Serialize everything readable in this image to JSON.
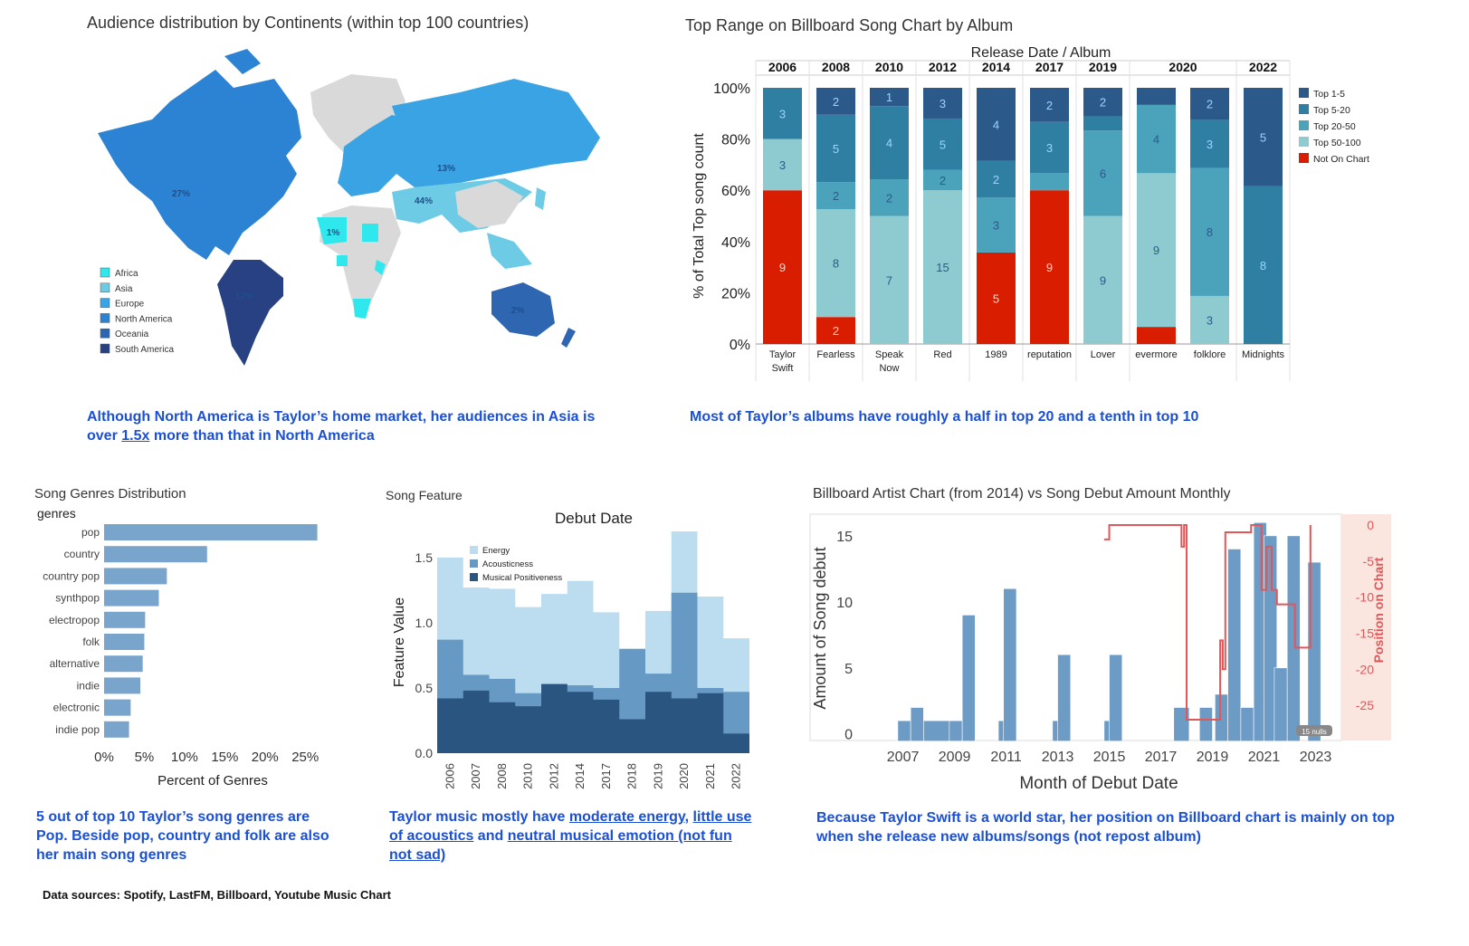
{
  "colors": {
    "africa": "#2ee8ee",
    "asia": "#6dcbe5",
    "europe": "#39a3e4",
    "north_america": "#2c83d3",
    "oceania": "#2f66b2",
    "south_america": "#274183",
    "top1_5": "#2b5a8a",
    "top5_20": "#2f7fa3",
    "top20_50": "#4aa2bb",
    "top50_100": "#8ecbd0",
    "not_on_chart": "#d81d00",
    "genre_bar": "#79a5cd",
    "energy": "#bcdcf0",
    "acousticness": "#6699c4",
    "positiveness": "#2a5580",
    "debut_bar": "#6c9bc6",
    "position_line": "#e15759",
    "position_bg": "#fbe6df",
    "caption": "#1a4fd6"
  },
  "map": {
    "title": "Audience distribution by Continents (within top 100 countries)",
    "labels": [
      "27%",
      "13%",
      "44%",
      "1%",
      "12%",
      "2%"
    ],
    "legend": [
      {
        "name": "Africa",
        "color": "#2ee8ee"
      },
      {
        "name": "Asia",
        "color": "#6dcbe5"
      },
      {
        "name": "Europe",
        "color": "#39a3e4"
      },
      {
        "name": "North America",
        "color": "#2c83d3"
      },
      {
        "name": "Oceania",
        "color": "#2f66b2"
      },
      {
        "name": "South America",
        "color": "#274183"
      }
    ],
    "caption_a": "Although North America is Taylor’s home market, her audiences in Asia is over ",
    "caption_u": "1.5x",
    "caption_b": " more than that in North America"
  },
  "chart_data": [
    {
      "type": "bar",
      "title": "Top Range on Billboard Song Chart by Album",
      "header": "Release Date  /  Album",
      "ylabel": "% of Total Top song count",
      "ylim": [
        0,
        100
      ],
      "yticks": [
        "0%",
        "20%",
        "40%",
        "60%",
        "80%",
        "100%"
      ],
      "years": [
        "2006",
        "2008",
        "2010",
        "2012",
        "2014",
        "2017",
        "2019",
        "2020",
        "2022"
      ],
      "categories": [
        "Taylor Swift",
        "Fearless",
        "Speak Now",
        "Red",
        "1989",
        "reputation",
        "Lover",
        "evermore",
        "folklore",
        "Midnights"
      ],
      "category_lines": [
        [
          "Taylor",
          "Swift"
        ],
        [
          "Fearless"
        ],
        [
          "Speak",
          "Now"
        ],
        [
          "Red"
        ],
        [
          "1989"
        ],
        [
          "reputation"
        ],
        [
          "Lover"
        ],
        [
          "evermore"
        ],
        [
          "folklore"
        ],
        [
          "Midnights"
        ]
      ],
      "series": [
        {
          "name": "Not On Chart",
          "values": [
            9,
            2,
            0,
            0,
            5,
            9,
            0,
            1,
            0,
            0
          ]
        },
        {
          "name": "Top 50-100",
          "values": [
            3,
            8,
            7,
            15,
            0,
            0,
            9,
            9,
            3,
            0
          ]
        },
        {
          "name": "Top 20-50",
          "values": [
            0,
            2,
            2,
            2,
            3,
            1,
            6,
            4,
            8,
            0
          ]
        },
        {
          "name": "Top 5-20",
          "values": [
            3,
            5,
            4,
            5,
            2,
            3,
            1,
            0,
            3,
            8
          ]
        },
        {
          "name": "Top 1-5",
          "values": [
            0,
            2,
            1,
            3,
            4,
            2,
            2,
            1,
            2,
            5
          ]
        }
      ],
      "data_labels": [
        [
          "9",
          "3",
          "",
          "3",
          ""
        ],
        [
          "2",
          "8",
          "2",
          "5",
          "2"
        ],
        [
          "",
          "7",
          "2",
          "4",
          "1"
        ],
        [
          "",
          "15",
          "2",
          "5",
          "3"
        ],
        [
          "5",
          "",
          "3",
          "2",
          "4"
        ],
        [
          "9",
          "",
          "",
          "3",
          "2"
        ],
        [
          "",
          "9",
          "6",
          "",
          "2"
        ],
        [
          "",
          "9",
          "4",
          "",
          ""
        ],
        [
          "",
          "3",
          "8",
          "3",
          "2"
        ],
        [
          "",
          "",
          "",
          "8",
          "5"
        ]
      ],
      "legend": [
        "Top 1-5",
        "Top 5-20",
        "Top 20-50",
        "Top 50-100",
        "Not On Chart"
      ],
      "caption": "Most of Taylor’s albums have roughly a half in top 20 and a tenth in top 10"
    },
    {
      "type": "bar",
      "title": "Song Genres Distribution",
      "ylabel": "genres",
      "xlabel": "Percent of Genres",
      "categories": [
        "pop",
        "country",
        "country pop",
        "synthpop",
        "electropop",
        "folk",
        "alternative",
        "indie",
        "electronic",
        "indie pop"
      ],
      "values": [
        26.5,
        12.8,
        7.8,
        6.8,
        5.1,
        5.0,
        4.8,
        4.5,
        3.3,
        3.1
      ],
      "xlim": [
        0,
        27
      ],
      "xticks": [
        "0%",
        "5%",
        "10%",
        "15%",
        "20%",
        "25%"
      ],
      "caption": "5 out of top 10 Taylor’s song genres are Pop. Beside pop, country and folk are also her main song genres"
    },
    {
      "type": "area",
      "title": "Song Feature",
      "header": "Debut Date",
      "ylabel": "Feature Value",
      "ylim": [
        0,
        1.7
      ],
      "yticks": [
        "0.0",
        "0.5",
        "1.0",
        "1.5"
      ],
      "x": [
        "2006",
        "2007",
        "2008",
        "2010",
        "2012",
        "2014",
        "2017",
        "2018",
        "2019",
        "2020",
        "2021",
        "2022"
      ],
      "series": [
        {
          "name": "Musical Positiveness",
          "values": [
            0.42,
            0.48,
            0.39,
            0.36,
            0.53,
            0.47,
            0.41,
            0.26,
            0.47,
            0.42,
            0.46,
            0.15
          ]
        },
        {
          "name": "Acousticness",
          "values": [
            0.45,
            0.12,
            0.18,
            0.1,
            0.0,
            0.05,
            0.09,
            0.54,
            0.14,
            0.81,
            0.04,
            0.32
          ]
        },
        {
          "name": "Energy",
          "values": [
            0.63,
            0.67,
            0.69,
            0.66,
            0.69,
            0.8,
            0.58,
            0.0,
            0.48,
            0.47,
            0.7,
            0.41
          ]
        }
      ],
      "legend": [
        "Energy",
        "Acousticness",
        "Musical Positiveness"
      ],
      "caption_parts": [
        {
          "text": "Taylor music mostly have ",
          "u": false
        },
        {
          "text": "moderate energy",
          "u": true
        },
        {
          "text": ", ",
          "u": false
        },
        {
          "text": "little use of acoustics",
          "u": true
        },
        {
          "text": " and ",
          "u": false
        },
        {
          "text": "neutral musical emotion (not fun not sad)",
          "u": true
        }
      ]
    },
    {
      "type": "bar",
      "title": "Billboard Artist Chart (from 2014) vs Song Debut Amount Monthly",
      "xlabel": "Month of Debut Date",
      "ylabel": "Amount of Song debut",
      "y2label": "Position on Chart",
      "xlim": [
        2005.4,
        2024.0
      ],
      "ylim": [
        -0.5,
        16.5
      ],
      "y2lim": [
        0,
        28
      ],
      "xticks": [
        "2007",
        "2009",
        "2011",
        "2013",
        "2015",
        "2017",
        "2019",
        "2021",
        "2023"
      ],
      "yticks": [
        "0",
        "5",
        "10",
        "15"
      ],
      "y2ticks": [
        "0",
        "-5",
        "-10",
        "-15",
        "-20",
        "-25"
      ],
      "bars": [
        {
          "x": 2006.8,
          "w": 0.5,
          "v": 1
        },
        {
          "x": 2007.3,
          "w": 0.5,
          "v": 2
        },
        {
          "x": 2007.8,
          "w": 1.1,
          "v": 1
        },
        {
          "x": 2008.8,
          "w": 0.5,
          "v": 1
        },
        {
          "x": 2009.3,
          "w": 0.5,
          "v": 9
        },
        {
          "x": 2010.7,
          "w": 0.5,
          "v": 1
        },
        {
          "x": 2010.9,
          "w": 0.5,
          "v": 11
        },
        {
          "x": 2012.8,
          "w": 0.5,
          "v": 1
        },
        {
          "x": 2013.0,
          "w": 0.5,
          "v": 6
        },
        {
          "x": 2014.8,
          "w": 0.5,
          "v": 1
        },
        {
          "x": 2015.0,
          "w": 0.5,
          "v": 6
        },
        {
          "x": 2017.5,
          "w": 0.6,
          "v": 2
        },
        {
          "x": 2018.5,
          "w": 0.5,
          "v": 2
        },
        {
          "x": 2019.1,
          "w": 0.5,
          "v": 3
        },
        {
          "x": 2019.6,
          "w": 0.5,
          "v": 14
        },
        {
          "x": 2020.1,
          "w": 0.5,
          "v": 2
        },
        {
          "x": 2020.6,
          "w": 0.5,
          "v": 16
        },
        {
          "x": 2021.0,
          "w": 0.5,
          "v": 15
        },
        {
          "x": 2021.4,
          "w": 0.5,
          "v": 5
        },
        {
          "x": 2021.9,
          "w": 0.5,
          "v": 15
        },
        {
          "x": 2022.7,
          "w": 0.5,
          "v": 13
        }
      ],
      "position_line": [
        [
          2014.8,
          2
        ],
        [
          2015.0,
          2
        ],
        [
          2015.0,
          0
        ],
        [
          2017.8,
          0
        ],
        [
          2017.8,
          3
        ],
        [
          2017.9,
          3
        ],
        [
          2017.9,
          0
        ],
        [
          2018.0,
          0
        ],
        [
          2018.0,
          27
        ],
        [
          2019.3,
          27
        ],
        [
          2019.3,
          16
        ],
        [
          2019.4,
          16
        ],
        [
          2019.4,
          20
        ],
        [
          2019.5,
          20
        ],
        [
          2019.5,
          1
        ],
        [
          2020.5,
          1
        ],
        [
          2020.5,
          0
        ],
        [
          2020.9,
          0
        ],
        [
          2020.9,
          9
        ],
        [
          2021.1,
          9
        ],
        [
          2021.1,
          3
        ],
        [
          2021.3,
          3
        ],
        [
          2021.3,
          9
        ],
        [
          2021.5,
          9
        ],
        [
          2021.5,
          11
        ],
        [
          2022.2,
          11
        ],
        [
          2022.2,
          17
        ],
        [
          2022.8,
          17
        ],
        [
          2022.8,
          0
        ]
      ],
      "nulls_badge": "15 nulls",
      "caption": "Because Taylor Swift is a world star, her position on Billboard chart is mainly on top when she release new albums/songs (not repost album)"
    }
  ],
  "sources": "Data sources: Spotify, LastFM, Billboard, Youtube Music Chart"
}
